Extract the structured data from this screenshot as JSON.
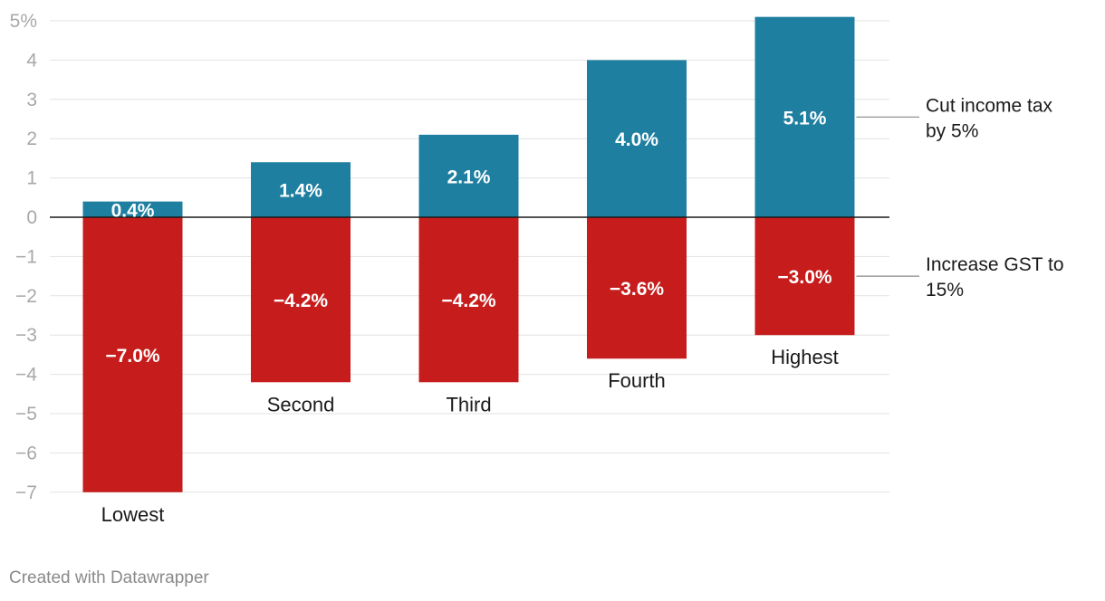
{
  "chart_data": {
    "type": "bar",
    "stacked": true,
    "categories": [
      "Lowest",
      "Second",
      "Third",
      "Fourth",
      "Highest"
    ],
    "series": [
      {
        "name": "Cut income tax by 5%",
        "values": [
          0.4,
          1.4,
          2.1,
          4.0,
          5.1
        ],
        "labels": [
          "0.4%",
          "1.4%",
          "2.1%",
          "4.0%",
          "5.1%"
        ],
        "color": "#1f7fa0"
      },
      {
        "name": "Increase GST to 15%",
        "values": [
          -7.0,
          -4.2,
          -4.2,
          -3.6,
          -3.0
        ],
        "labels": [
          "−7.0%",
          "−4.2%",
          "−4.2%",
          "−3.6%",
          "−3.0%"
        ],
        "color": "#c61c1c"
      }
    ],
    "legend_lines": [
      [
        "Cut income tax",
        "by 5%"
      ],
      [
        "Increase GST to",
        "15%"
      ]
    ],
    "yticks": [
      5,
      4,
      3,
      2,
      1,
      0,
      -1,
      -2,
      -3,
      -4,
      -5,
      -6,
      -7
    ],
    "ytick_labels": [
      "5%",
      "4",
      "3",
      "2",
      "1",
      "0",
      "−1",
      "−2",
      "−3",
      "−4",
      "−5",
      "−6",
      "−7"
    ],
    "ylim": [
      -7,
      5
    ],
    "grid": true,
    "legend_placement": "right"
  },
  "footer": {
    "credit": "Created with Datawrapper"
  }
}
